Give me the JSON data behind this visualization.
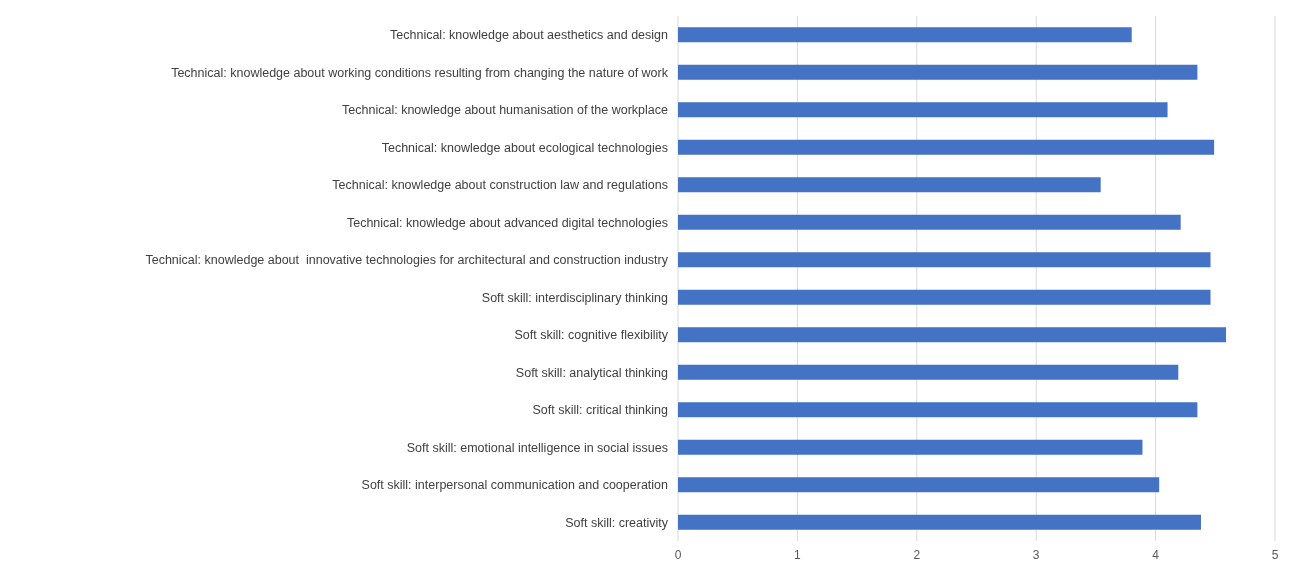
{
  "chart_data": {
    "type": "bar",
    "orientation": "horizontal",
    "categories": [
      "Technical: knowledge about aesthetics and design",
      "Technical: knowledge about working conditions resulting from changing the nature of work",
      "Technical: knowledge about humanisation of the workplace",
      "Technical: knowledge about ecological technologies",
      "Technical: knowledge about construction law and regulations",
      "Technical: knowledge about advanced digital technologies",
      "Technical: knowledge about  innovative technologies for architectural and construction industry",
      "Soft skill: interdisciplinary thinking",
      "Soft skill: cognitive flexibility",
      "Soft skill: analytical thinking",
      "Soft skill: critical thinking",
      "Soft skill: emotional intelligence in social issues",
      "Soft skill: interpersonal communication and cooperation",
      "Soft skill: creativity"
    ],
    "values": [
      3.8,
      4.35,
      4.1,
      4.49,
      3.54,
      4.21,
      4.46,
      4.46,
      4.59,
      4.19,
      4.35,
      3.89,
      4.03,
      4.38
    ],
    "color": "#4472c4",
    "xlim": [
      0,
      5
    ],
    "xticks": [
      0,
      1,
      2,
      3,
      4,
      5
    ],
    "grid": "x"
  }
}
